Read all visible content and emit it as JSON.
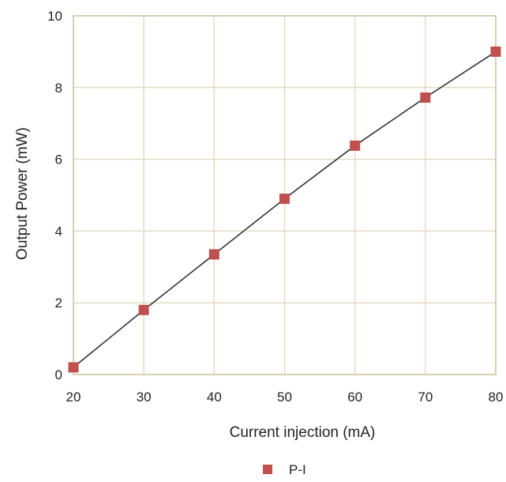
{
  "chart_data": {
    "type": "line",
    "xlabel": "Current injection (mA)",
    "ylabel": "Output Power (mW)",
    "xlim": [
      20,
      80
    ],
    "ylim": [
      0,
      10
    ],
    "x_ticks": [
      "20",
      "30",
      "40",
      "50",
      "60",
      "70",
      "80"
    ],
    "y_ticks": [
      "0",
      "2",
      "4",
      "6",
      "8",
      "10"
    ],
    "grid": true,
    "legend_position": "bottom-center",
    "series": [
      {
        "name": "P-I",
        "x": [
          20,
          30,
          40,
          50,
          60,
          70,
          80
        ],
        "y": [
          0.2,
          1.8,
          3.35,
          4.9,
          6.38,
          7.72,
          9.0
        ],
        "marker": "square",
        "marker_color": "#c0504d",
        "line_color": "#333333"
      }
    ]
  },
  "colors": {
    "grid": "#e3dcc2",
    "axis_frame": "#cfc6a2",
    "text": "#222222"
  }
}
